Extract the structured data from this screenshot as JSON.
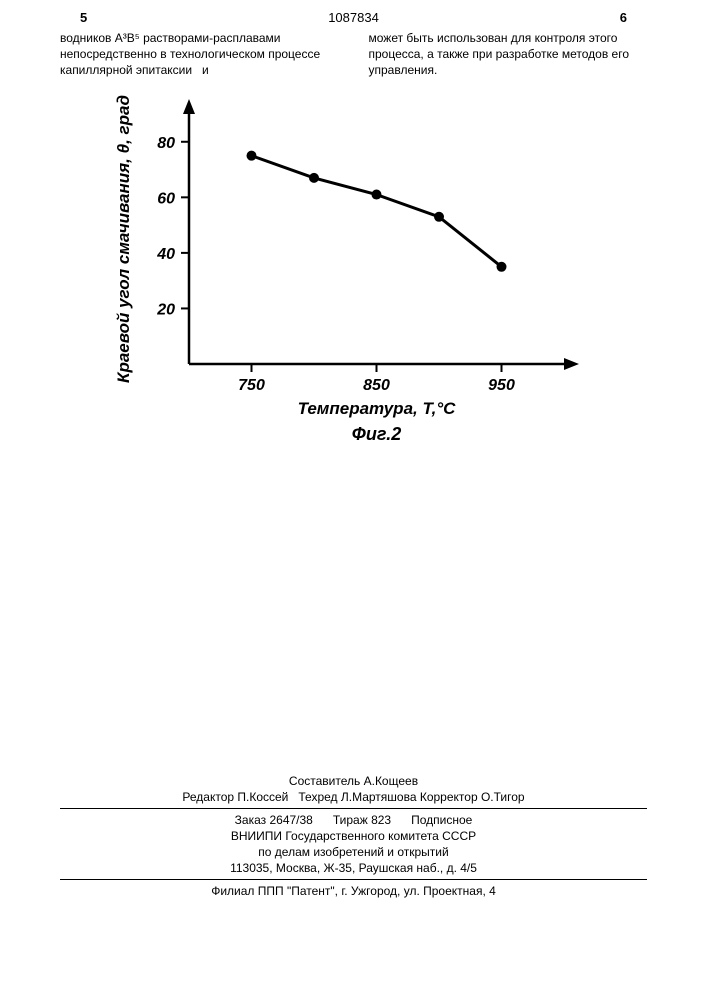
{
  "header": {
    "page_left": "5",
    "doc_number": "1087834",
    "page_right": "6"
  },
  "columns": {
    "left": "водников A³B⁵ растворами-расплавами непосредственно в технологическом процессе капиллярной эпитаксии   и",
    "right": "может быть использован для контроля этого процесса, а также при разра­ботке методов его управления."
  },
  "chart": {
    "type": "line",
    "y_label": "Краевой угол смачивания, θ, град",
    "x_label": "Температура, T,°C",
    "fig_label": "Фиг.2",
    "x_ticks": [
      750,
      850,
      950
    ],
    "y_ticks": [
      20,
      40,
      60,
      80
    ],
    "x_range": [
      700,
      1000
    ],
    "y_range": [
      0,
      90
    ],
    "points": [
      {
        "x": 750,
        "y": 75
      },
      {
        "x": 800,
        "y": 67
      },
      {
        "x": 850,
        "y": 61
      },
      {
        "x": 900,
        "y": 53
      },
      {
        "x": 950,
        "y": 35
      }
    ],
    "line_color": "#000000",
    "marker_color": "#000000",
    "marker_radius": 5,
    "line_width": 3,
    "axis_width": 2.5,
    "tick_fontsize": 16,
    "label_fontsize": 17,
    "label_fontstyle": "italic",
    "label_fontweight": "bold",
    "fig_fontsize": 18
  },
  "footer": {
    "composer": "Составитель А.Кощеев",
    "editor_line": "Редактор П.Коссей   Техред Л.Мартяшова Корректор О.Тигор",
    "order_line": "Заказ 2647/38      Тираж 823      Подписное",
    "org1": "ВНИИПИ Государственного комитета СССР",
    "org2": "по делам изобретений и открытий",
    "addr1": "113035, Москва, Ж-35, Раушская наб., д. 4/5",
    "branch": "Филиал ППП \"Патент\", г. Ужгород, ул. Проектная, 4"
  }
}
